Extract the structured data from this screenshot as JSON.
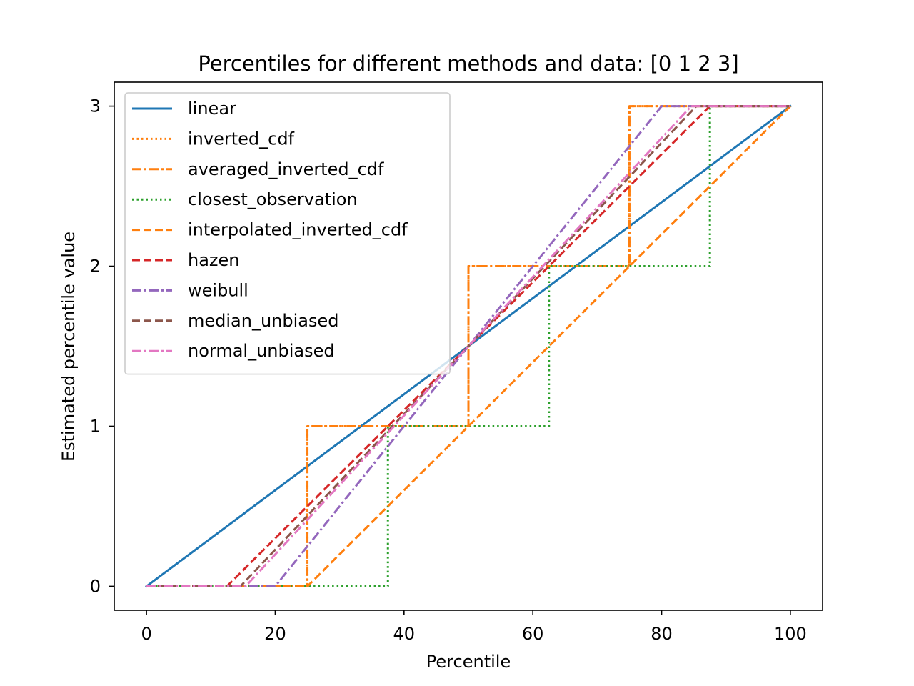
{
  "chart_data": {
    "type": "line",
    "title": "Percentiles for different methods and data: [0 1 2 3]",
    "xlabel": "Percentile",
    "ylabel": "Estimated percentile value",
    "xlim": [
      -5,
      105
    ],
    "ylim": [
      -0.15,
      3.15
    ],
    "xticks": [
      0,
      20,
      40,
      60,
      80,
      100
    ],
    "yticks": [
      0,
      1,
      2,
      3
    ],
    "grid": false,
    "legend_position": "upper-left",
    "series": [
      {
        "name": "linear",
        "color": "#1f77b4",
        "style": "solid",
        "step": false,
        "x": [
          0,
          100
        ],
        "y": [
          0,
          3
        ]
      },
      {
        "name": "inverted_cdf",
        "color": "#ff7f0e",
        "style": "dotted",
        "step": true,
        "x": [
          0,
          25,
          25,
          50,
          50,
          75,
          75,
          100
        ],
        "y": [
          0,
          0,
          1,
          1,
          2,
          2,
          3,
          3
        ]
      },
      {
        "name": "averaged_inverted_cdf",
        "color": "#ff7f0e",
        "style": "dashdot",
        "step": true,
        "x": [
          0,
          25,
          25,
          50,
          50,
          75,
          75,
          100
        ],
        "y": [
          0,
          0,
          1,
          1,
          2,
          2,
          3,
          3
        ]
      },
      {
        "name": "closest_observation",
        "color": "#2ca02c",
        "style": "dotted",
        "step": true,
        "x": [
          0,
          37.5,
          37.5,
          62.5,
          62.5,
          87.5,
          87.5,
          100
        ],
        "y": [
          0,
          0,
          1,
          1,
          2,
          2,
          3,
          3
        ]
      },
      {
        "name": "interpolated_inverted_cdf",
        "color": "#ff7f0e",
        "style": "dashed",
        "step": false,
        "x": [
          0,
          25,
          100
        ],
        "y": [
          0,
          0,
          3
        ]
      },
      {
        "name": "hazen",
        "color": "#d62728",
        "style": "dashed",
        "step": false,
        "x": [
          0,
          12.5,
          87.5,
          100
        ],
        "y": [
          0,
          0,
          3,
          3
        ]
      },
      {
        "name": "weibull",
        "color": "#9467bd",
        "style": "dashdot",
        "step": false,
        "x": [
          0,
          20,
          80,
          100
        ],
        "y": [
          0,
          0,
          3,
          3
        ]
      },
      {
        "name": "median_unbiased",
        "color": "#8c564b",
        "style": "dashed",
        "step": false,
        "x": [
          0,
          14.6,
          85.4,
          100
        ],
        "y": [
          0,
          0,
          3,
          3
        ]
      },
      {
        "name": "normal_unbiased",
        "color": "#e377c2",
        "style": "dashdot",
        "step": false,
        "x": [
          0,
          15.4,
          84.6,
          100
        ],
        "y": [
          0,
          0,
          3,
          3
        ]
      }
    ]
  }
}
